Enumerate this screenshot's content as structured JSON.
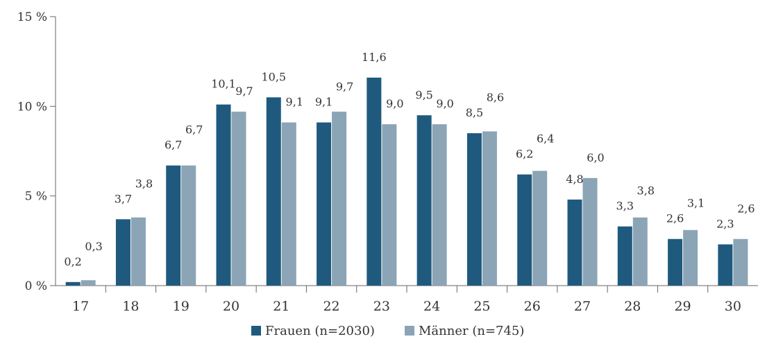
{
  "chart_data": {
    "type": "bar",
    "categories": [
      "17",
      "18",
      "19",
      "20",
      "21",
      "22",
      "23",
      "24",
      "25",
      "26",
      "27",
      "28",
      "29",
      "30"
    ],
    "series": [
      {
        "name": "Frauen (n=2030)",
        "color": "#1f5a7e",
        "values": [
          0.2,
          3.7,
          6.7,
          10.1,
          10.5,
          9.1,
          11.6,
          9.5,
          8.5,
          6.2,
          4.8,
          3.3,
          2.6,
          2.3
        ],
        "labels": [
          "0,2",
          "3,7",
          "6,7",
          "10,1",
          "10,5",
          "9,1",
          "11,6",
          "9,5",
          "8,5",
          "6,2",
          "4,8",
          "3,3",
          "2,6",
          "2,3"
        ]
      },
      {
        "name": "Männer (n=745)",
        "color": "#8ba4b6",
        "values": [
          0.3,
          3.8,
          6.7,
          9.7,
          9.1,
          9.7,
          9.0,
          9.0,
          8.6,
          6.4,
          6.0,
          3.8,
          3.1,
          2.6
        ],
        "labels": [
          "0,3",
          "3,8",
          "6,7",
          "9,7",
          "9,1",
          "9,7",
          "9,0",
          "9,0",
          "8,6",
          "6,4",
          "6,0",
          "3,8",
          "3,1",
          "2,6"
        ]
      }
    ],
    "yticks": [
      {
        "value": 0,
        "label": "0 %"
      },
      {
        "value": 5,
        "label": "5 %"
      },
      {
        "value": 10,
        "label": "10 %"
      },
      {
        "value": 15,
        "label": "15 %"
      }
    ],
    "ylim": [
      0,
      15
    ],
    "grid": false,
    "legend_position": "bottom"
  }
}
